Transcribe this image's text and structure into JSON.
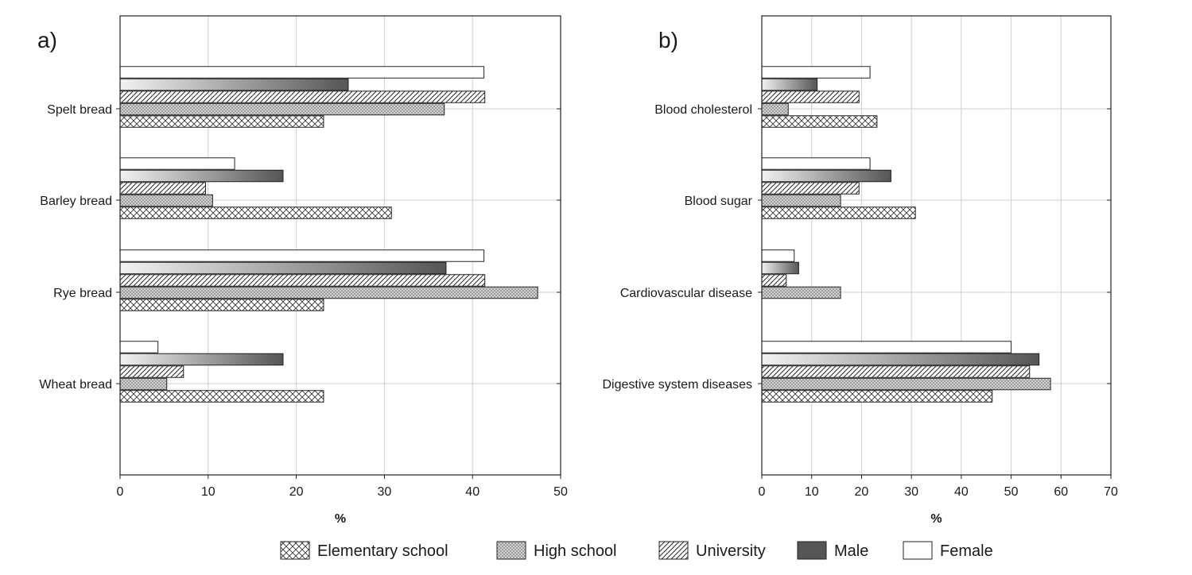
{
  "legend": [
    {
      "label": "Elementary school",
      "pattern": "crosshatch"
    },
    {
      "label": "High school",
      "pattern": "dots"
    },
    {
      "label": "University",
      "pattern": "diagonal"
    },
    {
      "label": "Male",
      "pattern": "solid-dark"
    },
    {
      "label": "Female",
      "pattern": "solid-white"
    }
  ],
  "colors": {
    "male_dark": "#555555",
    "male_light": "#f2f2f2",
    "outline": "#222222",
    "grid": "#cfcfcf"
  },
  "chart_data": [
    {
      "type": "bar",
      "orientation": "horizontal",
      "panel_label": "a)",
      "xlabel": "%",
      "ylabel": "",
      "xlim": [
        0,
        50
      ],
      "xticks": [
        "0",
        "10",
        "20",
        "30",
        "40",
        "50"
      ],
      "grid": true,
      "categories": [
        "Spelt bread",
        "Barley bread",
        "Rye bread",
        "Wheat bread"
      ],
      "series": [
        {
          "name": "Female",
          "values": [
            41.3,
            13.0,
            41.3,
            4.3
          ]
        },
        {
          "name": "Male",
          "values": [
            25.9,
            18.5,
            37.0,
            18.5
          ]
        },
        {
          "name": "University",
          "values": [
            41.4,
            9.7,
            41.4,
            7.2
          ]
        },
        {
          "name": "High school",
          "values": [
            36.8,
            10.5,
            47.4,
            5.3
          ]
        },
        {
          "name": "Elementary school",
          "values": [
            23.1,
            30.8,
            23.1,
            23.1
          ]
        }
      ]
    },
    {
      "type": "bar",
      "orientation": "horizontal",
      "panel_label": "b)",
      "xlabel": "%",
      "ylabel": "",
      "xlim": [
        0,
        70
      ],
      "xticks": [
        "0",
        "10",
        "20",
        "30",
        "40",
        "50",
        "60",
        "70"
      ],
      "grid": true,
      "categories": [
        "Blood cholesterol",
        "Blood sugar",
        "Cardiovascular disease",
        "Digestive system diseases"
      ],
      "series": [
        {
          "name": "Female",
          "values": [
            21.7,
            21.7,
            6.5,
            50.0
          ]
        },
        {
          "name": "Male",
          "values": [
            11.1,
            25.9,
            7.4,
            55.6
          ]
        },
        {
          "name": "University",
          "values": [
            19.5,
            19.5,
            4.9,
            53.7
          ]
        },
        {
          "name": "High school",
          "values": [
            5.3,
            15.8,
            15.8,
            57.9
          ]
        },
        {
          "name": "Elementary school",
          "values": [
            23.1,
            30.8,
            0,
            46.2
          ]
        }
      ]
    }
  ]
}
